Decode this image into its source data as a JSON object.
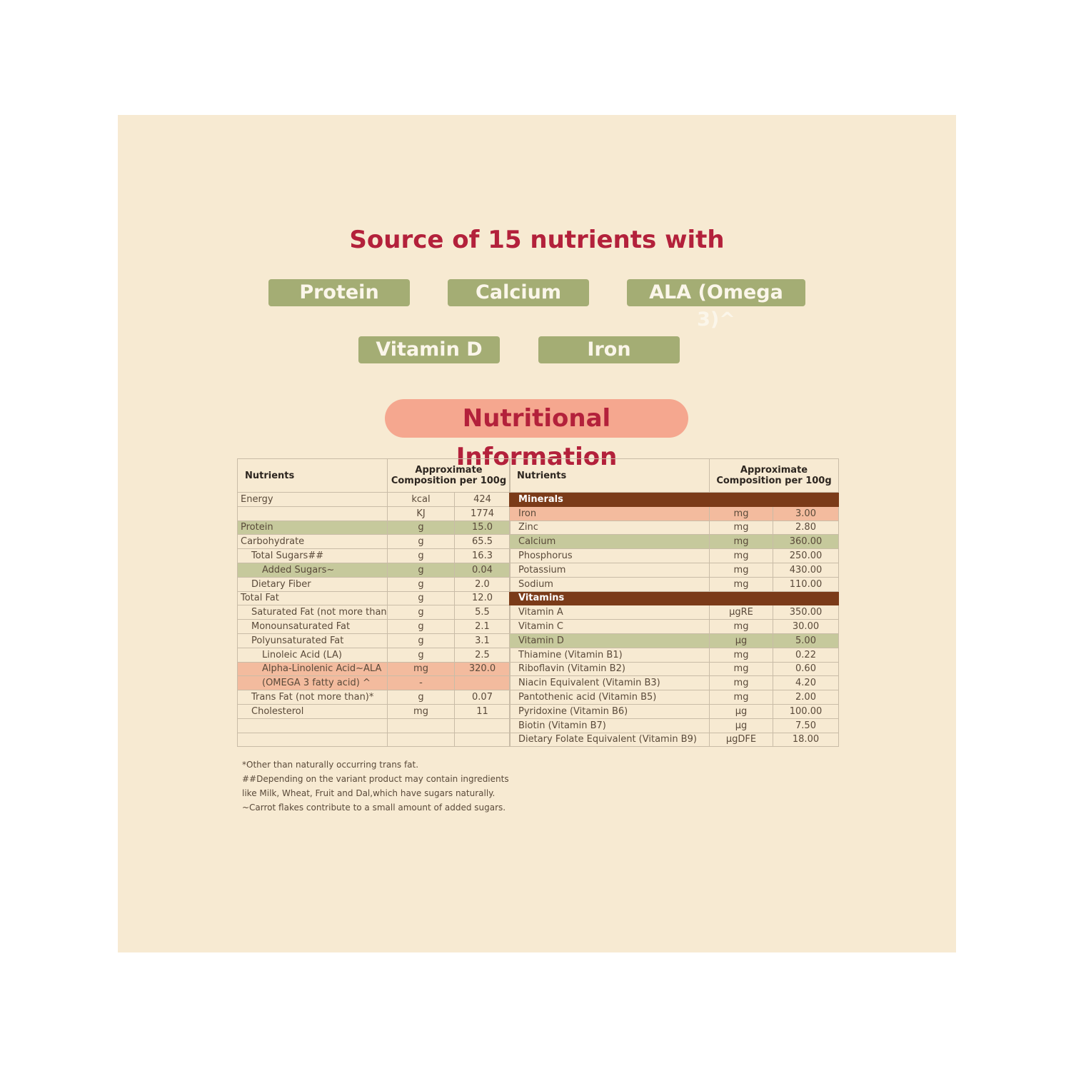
{
  "title": "Source of 15 nutrients with",
  "badges": [
    "Protein",
    "Calcium",
    "ALA (Omega 3)^",
    "Vitamin D",
    "Iron"
  ],
  "section_title": "Nutritional Information",
  "colors": {
    "red": "#b3213b",
    "green": "#a4ad74",
    "salmon": "#f5a78f",
    "brown": "#7b3b19",
    "paper": "#f7ead2"
  },
  "left_table": {
    "headers": [
      "Nutrients",
      "Approximate Composition per 100g"
    ],
    "rows": [
      {
        "name": "Energy",
        "unit": "kcal",
        "value": "424",
        "indent": 0
      },
      {
        "name": "",
        "unit": "KJ",
        "value": "1774",
        "indent": 0
      },
      {
        "name": "Protein",
        "unit": "g",
        "value": "15.0",
        "indent": 0,
        "hl": "green"
      },
      {
        "name": "Carbohydrate",
        "unit": "g",
        "value": "65.5",
        "indent": 0
      },
      {
        "name": "Total Sugars##",
        "unit": "g",
        "value": "16.3",
        "indent": 1
      },
      {
        "name": "Added Sugars~",
        "unit": "g",
        "value": "0.04",
        "indent": 2,
        "hl": "green"
      },
      {
        "name": "Dietary Fiber",
        "unit": "g",
        "value": "2.0",
        "indent": 1
      },
      {
        "name": "Total Fat",
        "unit": "g",
        "value": "12.0",
        "indent": 0
      },
      {
        "name": "Saturated Fat (not more than)",
        "unit": "g",
        "value": "5.5",
        "indent": 1
      },
      {
        "name": "Monounsaturated Fat",
        "unit": "g",
        "value": "2.1",
        "indent": 1
      },
      {
        "name": "Polyunsaturated Fat",
        "unit": "g",
        "value": "3.1",
        "indent": 1
      },
      {
        "name": "Linoleic Acid (LA)",
        "unit": "g",
        "value": "2.5",
        "indent": 2
      },
      {
        "name": "Alpha-Linolenic Acid~ALA",
        "unit": "mg",
        "value": "320.0",
        "indent": 2,
        "hl": "salmon"
      },
      {
        "name": "(OMEGA 3 fatty acid) ^",
        "unit": "-",
        "value": "",
        "indent": 2,
        "hl": "salmon"
      },
      {
        "name": "Trans Fat (not more than)*",
        "unit": "g",
        "value": "0.07",
        "indent": 1
      },
      {
        "name": "Cholesterol",
        "unit": "mg",
        "value": "11",
        "indent": 1
      },
      {
        "name": "",
        "unit": "",
        "value": "",
        "indent": 0
      },
      {
        "name": "",
        "unit": "",
        "value": "",
        "indent": 0
      }
    ]
  },
  "right_table": {
    "headers": [
      "Nutrients",
      "Approximate Composition per 100g"
    ],
    "rows": [
      {
        "name": "Minerals",
        "hl": "brown"
      },
      {
        "name": "Iron",
        "unit": "mg",
        "value": "3.00",
        "hl": "salmon"
      },
      {
        "name": "Zinc",
        "unit": "mg",
        "value": "2.80"
      },
      {
        "name": "Calcium",
        "unit": "mg",
        "value": "360.00",
        "hl": "green"
      },
      {
        "name": "Phosphorus",
        "unit": "mg",
        "value": "250.00"
      },
      {
        "name": "Potassium",
        "unit": "mg",
        "value": "430.00"
      },
      {
        "name": "Sodium",
        "unit": "mg",
        "value": "110.00"
      },
      {
        "name": "Vitamins",
        "hl": "brown"
      },
      {
        "name": "Vitamin A",
        "unit": "µgRE",
        "value": "350.00"
      },
      {
        "name": "Vitamin C",
        "unit": "mg",
        "value": "30.00"
      },
      {
        "name": "Vitamin D",
        "unit": "µg",
        "value": "5.00",
        "hl": "green"
      },
      {
        "name": "Thiamine (Vitamin B1)",
        "unit": "mg",
        "value": "0.22"
      },
      {
        "name": "Riboflavin (Vitamin B2)",
        "unit": "mg",
        "value": "0.60"
      },
      {
        "name": "Niacin Equivalent (Vitamin B3)",
        "unit": "mg",
        "value": "4.20"
      },
      {
        "name": "Pantothenic acid (Vitamin B5)",
        "unit": "mg",
        "value": "2.00"
      },
      {
        "name": "Pyridoxine (Vitamin B6)",
        "unit": "µg",
        "value": "100.00"
      },
      {
        "name": "Biotin (Vitamin B7)",
        "unit": "µg",
        "value": "7.50"
      },
      {
        "name": "Dietary Folate Equivalent (Vitamin B9)",
        "unit": "µgDFE",
        "value": "18.00"
      }
    ]
  },
  "footnotes": [
    "*Other than naturally occurring trans fat.",
    "##Depending on the variant product may contain ingredients",
    "like Milk, Wheat, Fruit and Dal,which have sugars naturally.",
    "~Carrot flakes contribute to a small amount of added sugars."
  ]
}
